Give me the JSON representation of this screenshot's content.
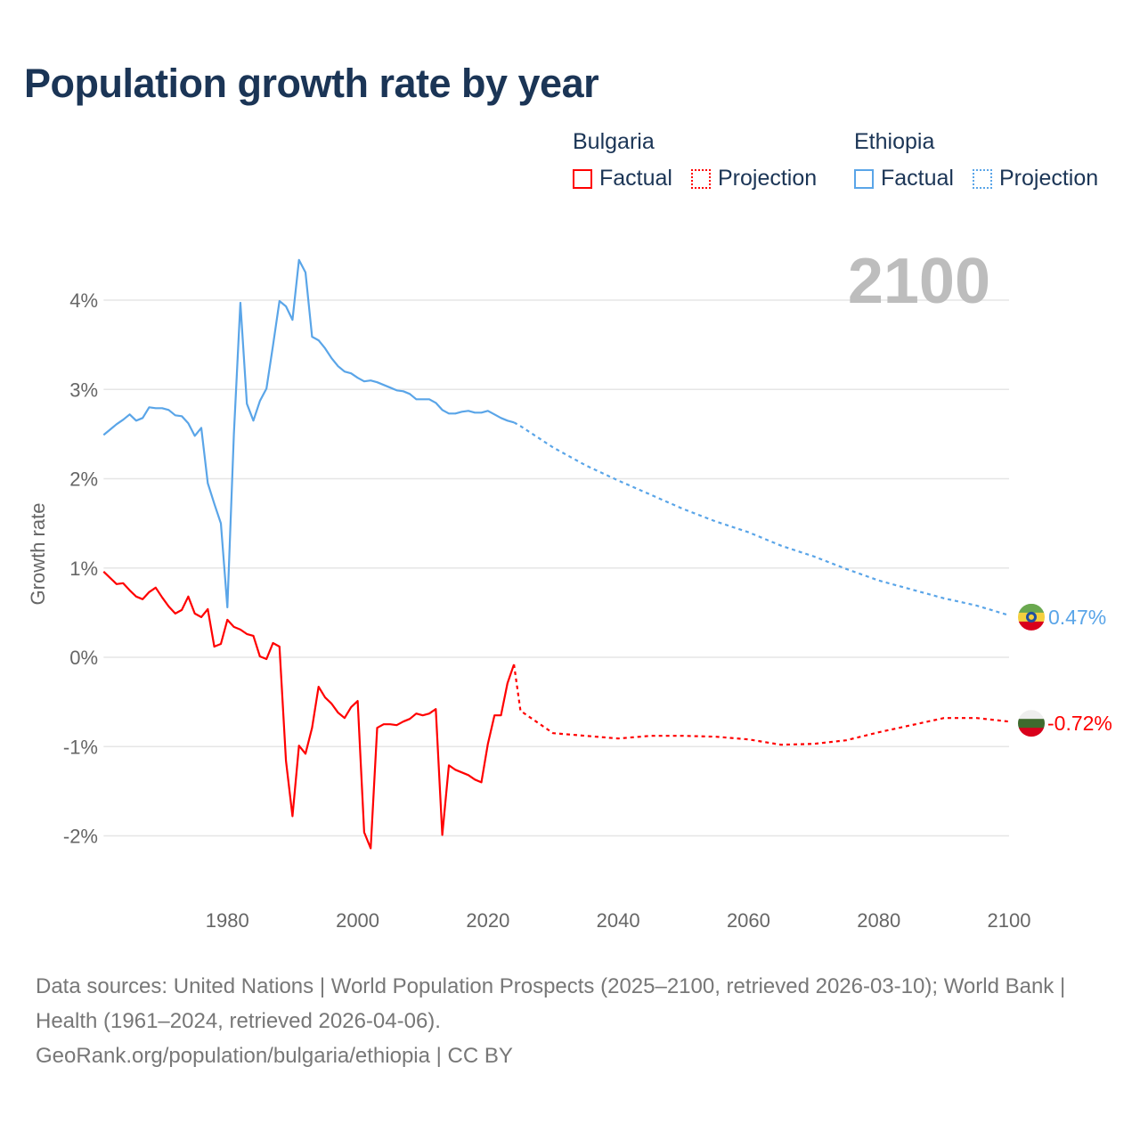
{
  "title": "Population growth rate by year",
  "legend": {
    "groups": [
      {
        "name": "Bulgaria",
        "factual": "Factual",
        "projection": "Projection",
        "color": "#ff0000"
      },
      {
        "name": "Ethiopia",
        "factual": "Factual",
        "projection": "Projection",
        "color": "#5aa5e8"
      }
    ]
  },
  "current_year": "2100",
  "end_labels": {
    "ethiopia": "0.47%",
    "bulgaria": "-0.72%"
  },
  "footer": {
    "sources": "Data sources: United Nations | World Population Prospects (2025–2100, retrieved 2026-03-10); World Bank | Health (1961–2024, retrieved 2026-04-06).",
    "link": "GeoRank.org/population/bulgaria/ethiopia | CC BY"
  },
  "chart_data": {
    "type": "line",
    "title": "Population growth rate by year",
    "xlabel": "",
    "ylabel": "Growth rate",
    "xlim": [
      1961,
      2100
    ],
    "ylim": [
      -2.7,
      4.6
    ],
    "x_ticks": [
      1980,
      2000,
      2020,
      2040,
      2060,
      2080,
      2100
    ],
    "x_tick_labels": [
      "1980",
      "2000",
      "2020",
      "2040",
      "2060",
      "2080",
      "2100"
    ],
    "y_ticks": [
      4,
      3,
      2,
      1,
      0,
      -1,
      -2
    ],
    "y_tick_labels": [
      "4%",
      "3%",
      "2%",
      "1%",
      "0%",
      "-1%",
      "-2%"
    ],
    "grid": true,
    "legend_position": "top-right",
    "series": [
      {
        "name": "Bulgaria Factual",
        "color": "#ff0000",
        "style": "solid",
        "x_start": 1961,
        "values": [
          0.96,
          0.89,
          0.82,
          0.83,
          0.75,
          0.68,
          0.65,
          0.73,
          0.78,
          0.67,
          0.57,
          0.49,
          0.53,
          0.68,
          0.49,
          0.45,
          0.54,
          0.12,
          0.15,
          0.42,
          0.34,
          0.31,
          0.26,
          0.24,
          0.01,
          -0.02,
          0.16,
          0.12,
          -1.16,
          -1.78,
          -0.99,
          -1.08,
          -0.79,
          -0.33,
          -0.45,
          -0.52,
          -0.62,
          -0.68,
          -0.56,
          -0.49,
          -1.96,
          -2.14,
          -0.79,
          -0.75,
          -0.75,
          -0.76,
          -0.72,
          -0.69,
          -0.63,
          -0.65,
          -0.63,
          -0.58,
          -1.99,
          -1.21,
          -1.26,
          -1.29,
          -1.32,
          -1.37,
          -1.4,
          -0.97,
          -0.65,
          -0.65,
          -0.29,
          -0.08
        ]
      },
      {
        "name": "Bulgaria Projection",
        "color": "#ff0000",
        "style": "dotted",
        "x": [
          2025,
          2030,
          2035,
          2040,
          2045,
          2050,
          2055,
          2060,
          2065,
          2070,
          2075,
          2080,
          2085,
          2090,
          2095,
          2100
        ],
        "values": [
          -0.6,
          -0.85,
          -0.88,
          -0.91,
          -0.88,
          -0.88,
          -0.89,
          -0.92,
          -0.98,
          -0.97,
          -0.93,
          -0.84,
          -0.76,
          -0.68,
          -0.68,
          -0.72
        ]
      },
      {
        "name": "Ethiopia Factual",
        "color": "#5aa5e8",
        "style": "solid",
        "x_start": 1961,
        "values": [
          2.49,
          2.55,
          2.61,
          2.66,
          2.72,
          2.65,
          2.68,
          2.8,
          2.79,
          2.79,
          2.77,
          2.71,
          2.7,
          2.62,
          2.48,
          2.57,
          1.95,
          1.72,
          1.5,
          0.56,
          2.5,
          3.97,
          2.84,
          2.65,
          2.87,
          3.01,
          3.49,
          3.99,
          3.93,
          3.78,
          4.45,
          4.31,
          3.59,
          3.55,
          3.46,
          3.35,
          3.26,
          3.2,
          3.18,
          3.13,
          3.09,
          3.1,
          3.08,
          3.05,
          3.02,
          2.99,
          2.98,
          2.95,
          2.89,
          2.89,
          2.89,
          2.85,
          2.77,
          2.73,
          2.73,
          2.75,
          2.76,
          2.74,
          2.74,
          2.76,
          2.72,
          2.68,
          2.65,
          2.63
        ]
      },
      {
        "name": "Ethiopia Projection",
        "color": "#5aa5e8",
        "style": "dotted",
        "x": [
          2025,
          2030,
          2035,
          2040,
          2045,
          2050,
          2055,
          2060,
          2065,
          2070,
          2075,
          2080,
          2085,
          2090,
          2095,
          2100
        ],
        "values": [
          2.59,
          2.35,
          2.15,
          1.98,
          1.82,
          1.66,
          1.52,
          1.4,
          1.25,
          1.13,
          0.99,
          0.86,
          0.76,
          0.66,
          0.58,
          0.47
        ]
      }
    ]
  }
}
